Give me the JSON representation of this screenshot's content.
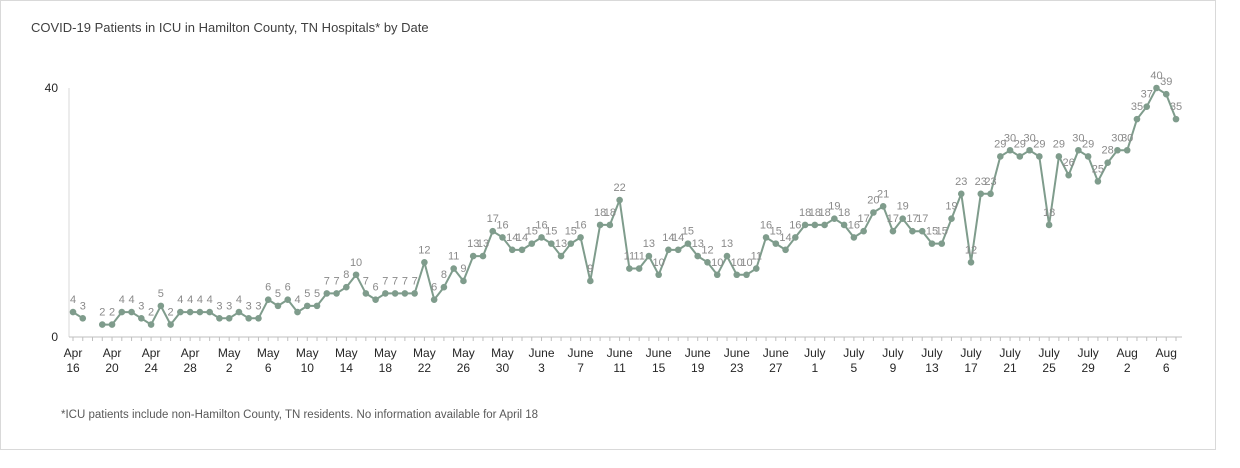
{
  "chart_data": {
    "type": "line",
    "title": "COVID-19 Patients in ICU in Hamilton County, TN Hospitals* by Date",
    "footnote": "*ICU patients include non-Hamilton County, TN residents. No information available for April 18",
    "ylim": [
      0,
      40
    ],
    "yticks": [
      "0",
      "40"
    ],
    "color": "#7f9c8c",
    "x_tick_labels": [
      [
        "Apr",
        "16"
      ],
      [
        "Apr",
        "20"
      ],
      [
        "Apr",
        "24"
      ],
      [
        "Apr",
        "28"
      ],
      [
        "May",
        "2"
      ],
      [
        "May",
        "6"
      ],
      [
        "May",
        "10"
      ],
      [
        "May",
        "14"
      ],
      [
        "May",
        "18"
      ],
      [
        "May",
        "22"
      ],
      [
        "May",
        "26"
      ],
      [
        "May",
        "30"
      ],
      [
        "June",
        "3"
      ],
      [
        "June",
        "7"
      ],
      [
        "June",
        "11"
      ],
      [
        "June",
        "15"
      ],
      [
        "June",
        "19"
      ],
      [
        "June",
        "23"
      ],
      [
        "June",
        "27"
      ],
      [
        "July",
        "1"
      ],
      [
        "July",
        "5"
      ],
      [
        "July",
        "9"
      ],
      [
        "July",
        "13"
      ],
      [
        "July",
        "17"
      ],
      [
        "July",
        "21"
      ],
      [
        "July",
        "25"
      ],
      [
        "July",
        "29"
      ],
      [
        "Aug",
        "2"
      ],
      [
        "Aug",
        "6"
      ]
    ],
    "x_start": "Apr 16",
    "x_end": "Aug 7",
    "points": [
      [
        "Apr 16",
        4
      ],
      [
        "Apr 17",
        3
      ],
      [
        "Apr 19",
        2
      ],
      [
        "Apr 20",
        2
      ],
      [
        "Apr 21",
        4
      ],
      [
        "Apr 22",
        4
      ],
      [
        "Apr 23",
        3
      ],
      [
        "Apr 24",
        2
      ],
      [
        "Apr 25",
        5
      ],
      [
        "Apr 26",
        2
      ],
      [
        "Apr 27",
        4
      ],
      [
        "Apr 28",
        4
      ],
      [
        "Apr 29",
        4
      ],
      [
        "Apr 30",
        4
      ],
      [
        "May 1",
        3
      ],
      [
        "May 2",
        3
      ],
      [
        "May 3",
        4
      ],
      [
        "May 4",
        3
      ],
      [
        "May 5",
        3
      ],
      [
        "May 6",
        6
      ],
      [
        "May 7",
        5
      ],
      [
        "May 8",
        6
      ],
      [
        "May 9",
        4
      ],
      [
        "May 10",
        5
      ],
      [
        "May 11",
        5
      ],
      [
        "May 12",
        7
      ],
      [
        "May 13",
        7
      ],
      [
        "May 14",
        8
      ],
      [
        "May 15",
        10
      ],
      [
        "May 16",
        7
      ],
      [
        "May 17",
        6
      ],
      [
        "May 18",
        7
      ],
      [
        "May 19",
        7
      ],
      [
        "May 20",
        7
      ],
      [
        "May 21",
        7
      ],
      [
        "May 22",
        12
      ],
      [
        "May 23",
        6
      ],
      [
        "May 24",
        8
      ],
      [
        "May 25",
        11
      ],
      [
        "May 26",
        9
      ],
      [
        "May 27",
        13
      ],
      [
        "May 28",
        13
      ],
      [
        "May 29",
        17
      ],
      [
        "May 30",
        16
      ],
      [
        "May 31",
        14
      ],
      [
        "June 1",
        14
      ],
      [
        "June 2",
        15
      ],
      [
        "June 3",
        16
      ],
      [
        "June 4",
        15
      ],
      [
        "June 5",
        13
      ],
      [
        "June 6",
        15
      ],
      [
        "June 7",
        16
      ],
      [
        "June 8",
        9
      ],
      [
        "June 9",
        18
      ],
      [
        "June 10",
        18
      ],
      [
        "June 11",
        22
      ],
      [
        "June 12",
        11
      ],
      [
        "June 13",
        11
      ],
      [
        "June 14",
        13
      ],
      [
        "June 15",
        10
      ],
      [
        "June 16",
        14
      ],
      [
        "June 17",
        14
      ],
      [
        "June 18",
        15
      ],
      [
        "June 19",
        13
      ],
      [
        "June 20",
        12
      ],
      [
        "June 21",
        10
      ],
      [
        "June 22",
        13
      ],
      [
        "June 23",
        10
      ],
      [
        "June 24",
        10
      ],
      [
        "June 25",
        11
      ],
      [
        "June 26",
        16
      ],
      [
        "June 27",
        15
      ],
      [
        "June 28",
        14
      ],
      [
        "June 29",
        16
      ],
      [
        "June 30",
        18
      ],
      [
        "July 1",
        18
      ],
      [
        "July 2",
        18
      ],
      [
        "July 3",
        19
      ],
      [
        "July 4",
        18
      ],
      [
        "July 5",
        16
      ],
      [
        "July 6",
        17
      ],
      [
        "July 7",
        20
      ],
      [
        "July 8",
        21
      ],
      [
        "July 9",
        17
      ],
      [
        "July 10",
        19
      ],
      [
        "July 11",
        17
      ],
      [
        "July 12",
        17
      ],
      [
        "July 13",
        15
      ],
      [
        "July 14",
        15
      ],
      [
        "July 15",
        19
      ],
      [
        "July 16",
        23
      ],
      [
        "July 17",
        12
      ],
      [
        "July 18",
        23
      ],
      [
        "July 19",
        23
      ],
      [
        "July 20",
        29
      ],
      [
        "July 21",
        30
      ],
      [
        "July 22",
        29
      ],
      [
        "July 23",
        30
      ],
      [
        "July 24",
        29
      ],
      [
        "July 25",
        18
      ],
      [
        "July 26",
        29
      ],
      [
        "July 27",
        26
      ],
      [
        "July 28",
        30
      ],
      [
        "July 29",
        29
      ],
      [
        "July 30",
        25
      ],
      [
        "July 31",
        28
      ],
      [
        "Aug 1",
        30
      ],
      [
        "Aug 2",
        30
      ],
      [
        "Aug 3",
        35
      ],
      [
        "Aug 4",
        37
      ],
      [
        "Aug 5",
        40
      ],
      [
        "Aug 6",
        39
      ],
      [
        "Aug 7",
        35
      ]
    ]
  }
}
